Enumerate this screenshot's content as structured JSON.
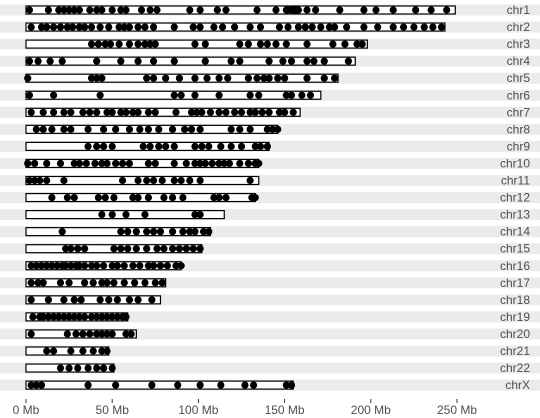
{
  "chart_data": {
    "type": "scatter",
    "title": "",
    "xlabel": "",
    "ylabel": "",
    "x_unit": "Mb",
    "xlim": [
      0,
      265
    ],
    "x_ticks": [
      0,
      50,
      100,
      150,
      200,
      250
    ],
    "x_tick_labels": [
      "0 Mb",
      "50 Mb",
      "100 Mb",
      "150 Mb",
      "200 Mb",
      "250 Mb"
    ],
    "grid": false,
    "legend": "none",
    "colors": {
      "band": "#ebebeb",
      "outline": "#000000",
      "dot": "#000000",
      "text": "#4d4d4d"
    },
    "chromosomes": [
      {
        "name": "chr1",
        "length": 249,
        "features": [
          2,
          13,
          19,
          22,
          25,
          28,
          31,
          37,
          41,
          44,
          50,
          55,
          58,
          67,
          72,
          76,
          95,
          101,
          111,
          116,
          134,
          145,
          151,
          152,
          154,
          155,
          156,
          157,
          158,
          163,
          168,
          182,
          196,
          203,
          213,
          226,
          235,
          244
        ]
      },
      {
        "name": "chr2",
        "length": 243,
        "features": [
          3,
          9,
          12,
          16,
          20,
          24,
          27,
          31,
          34,
          38,
          43,
          48,
          54,
          57,
          60,
          65,
          69,
          74,
          86,
          97,
          101,
          109,
          114,
          121,
          130,
          136,
          147,
          152,
          158,
          162,
          166,
          171,
          176,
          179,
          186,
          196,
          204,
          213,
          219,
          225,
          231,
          236,
          241
        ]
      },
      {
        "name": "chr3",
        "length": 198,
        "features": [
          38,
          42,
          46,
          49,
          54,
          60,
          65,
          69,
          72,
          75,
          98,
          104,
          124,
          129,
          136,
          140,
          145,
          151,
          163,
          178,
          185,
          192,
          195
        ]
      },
      {
        "name": "chr4",
        "length": 191,
        "features": [
          2,
          7,
          14,
          21,
          41,
          55,
          65,
          74,
          86,
          104,
          119,
          124,
          141,
          149,
          154,
          163,
          167,
          173,
          187
        ]
      },
      {
        "name": "chr5",
        "length": 181,
        "features": [
          1,
          38,
          41,
          44,
          70,
          74,
          81,
          89,
          98,
          105,
          112,
          117,
          129,
          134,
          138,
          141,
          146,
          150,
          163,
          173,
          179
        ]
      },
      {
        "name": "chr6",
        "length": 171,
        "features": [
          2,
          16,
          43,
          86,
          90,
          98,
          112,
          130,
          135,
          151,
          154,
          160,
          165
        ]
      },
      {
        "name": "chr7",
        "length": 159,
        "features": [
          3,
          10,
          16,
          22,
          26,
          33,
          37,
          41,
          47,
          50,
          55,
          58,
          62,
          65,
          71,
          75,
          87,
          96,
          99,
          102,
          107,
          112,
          116,
          121,
          125,
          130,
          133,
          137,
          141,
          147,
          150,
          155
        ]
      },
      {
        "name": "chr8",
        "length": 146,
        "features": [
          6,
          10,
          15,
          22,
          26,
          36,
          45,
          52,
          60,
          66,
          71,
          77,
          85,
          92,
          96,
          101,
          119,
          124,
          130,
          140,
          143,
          146
        ]
      },
      {
        "name": "chr9",
        "length": 141,
        "features": [
          36,
          41,
          45,
          50,
          68,
          72,
          77,
          81,
          86,
          98,
          102,
          106,
          113,
          119,
          125,
          133,
          136,
          140
        ]
      },
      {
        "name": "chr10",
        "length": 135,
        "features": [
          1,
          5,
          12,
          20,
          28,
          31,
          35,
          40,
          44,
          47,
          52,
          56,
          60,
          71,
          75,
          86,
          93,
          98,
          101,
          104,
          108,
          112,
          115,
          118,
          124,
          129,
          133,
          135
        ]
      },
      {
        "name": "chr11",
        "length": 135,
        "features": [
          2,
          5,
          8,
          12,
          22,
          56,
          65,
          70,
          74,
          79,
          86,
          90,
          95,
          101,
          130
        ]
      },
      {
        "name": "chr12",
        "length": 133,
        "features": [
          15,
          24,
          28,
          42,
          46,
          51,
          62,
          65,
          71,
          80,
          85,
          91,
          109,
          112,
          116,
          131,
          133
        ]
      },
      {
        "name": "chr13",
        "length": 115,
        "features": [
          44,
          50,
          58,
          69,
          98,
          101
        ]
      },
      {
        "name": "chr14",
        "length": 107,
        "features": [
          21,
          55,
          59,
          64,
          70,
          74,
          78,
          85,
          91,
          95,
          98,
          103,
          106
        ]
      },
      {
        "name": "chr15",
        "length": 102,
        "features": [
          23,
          26,
          30,
          34,
          51,
          55,
          59,
          64,
          70,
          76,
          80,
          85,
          89,
          93,
          97,
          101
        ]
      },
      {
        "name": "chr16",
        "length": 90,
        "features": [
          3,
          6,
          9,
          12,
          15,
          18,
          21,
          23,
          26,
          29,
          31,
          34,
          38,
          41,
          45,
          50,
          53,
          57,
          62,
          66,
          71,
          74,
          78,
          82,
          87,
          90
        ]
      },
      {
        "name": "chr17",
        "length": 81,
        "features": [
          3,
          7,
          10,
          20,
          25,
          34,
          39,
          44,
          47,
          51,
          57,
          63,
          69,
          75,
          79
        ]
      },
      {
        "name": "chr18",
        "length": 78,
        "features": [
          3,
          13,
          22,
          28,
          32,
          43,
          48,
          53,
          60,
          65,
          73
        ]
      },
      {
        "name": "chr19",
        "length": 59,
        "features": [
          4,
          8,
          10,
          13,
          16,
          19,
          22,
          25,
          28,
          31,
          34,
          38,
          41,
          44,
          47,
          50,
          53,
          56,
          58
        ]
      },
      {
        "name": "chr20",
        "length": 64,
        "features": [
          3,
          24,
          29,
          33,
          37,
          41,
          44,
          47,
          50,
          58,
          61
        ]
      },
      {
        "name": "chr21",
        "length": 48,
        "features": [
          12,
          16,
          26,
          33,
          39,
          44,
          47
        ]
      },
      {
        "name": "chr22",
        "length": 51,
        "features": [
          20,
          25,
          30,
          36,
          41,
          45,
          50
        ]
      },
      {
        "name": "chrX",
        "length": 155,
        "features": [
          3,
          6,
          9,
          36,
          52,
          73,
          88,
          101,
          113,
          127,
          132,
          151,
          154
        ]
      }
    ]
  }
}
